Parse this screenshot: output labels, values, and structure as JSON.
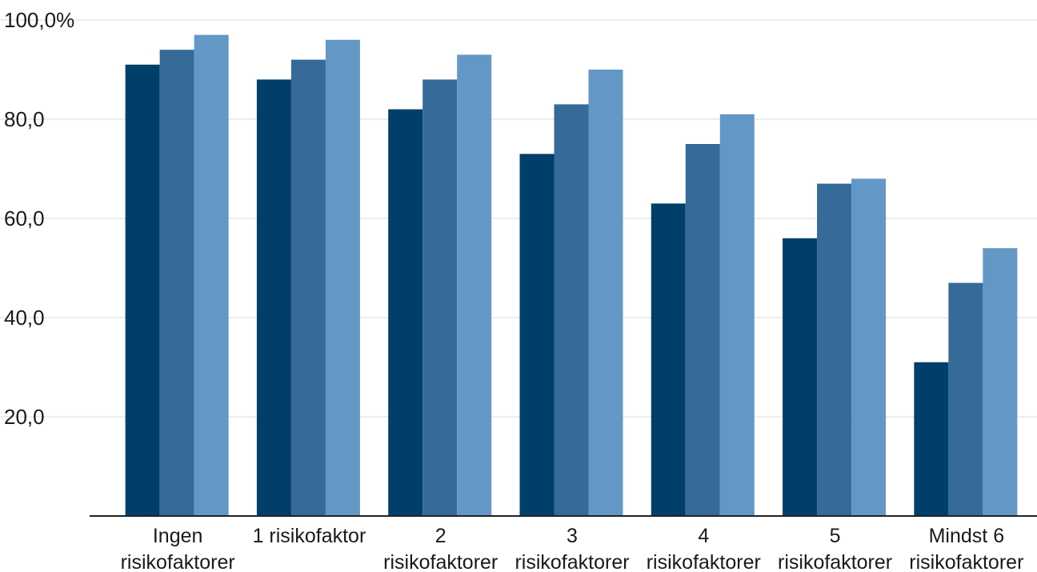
{
  "chart_data": {
    "type": "bar",
    "categories": [
      [
        "Ingen",
        "risikofaktorer"
      ],
      [
        "1 risikofaktor"
      ],
      [
        "2",
        "risikofaktorer"
      ],
      [
        "3",
        "risikofaktorer"
      ],
      [
        "4",
        "risikofaktorer"
      ],
      [
        "5",
        "risikofaktorer"
      ],
      [
        "Mindst 6",
        "risikofaktorer"
      ]
    ],
    "series": [
      {
        "values": [
          91,
          88,
          82,
          73,
          63,
          56,
          31
        ]
      },
      {
        "values": [
          94,
          92,
          88,
          83,
          75,
          67,
          47
        ]
      },
      {
        "values": [
          97,
          96,
          93,
          90,
          81,
          68,
          54
        ]
      }
    ],
    "colors": [
      "#003f69",
      "#366a98",
      "#6397c6"
    ],
    "ylim": [
      0,
      100
    ],
    "yticks": [
      20,
      40,
      60,
      80,
      100
    ],
    "ytick_labels": [
      "20,0",
      "40,0",
      "60,0",
      "80,0",
      "100,0%"
    ],
    "grid": true,
    "title": "",
    "xlabel": "",
    "ylabel": ""
  }
}
